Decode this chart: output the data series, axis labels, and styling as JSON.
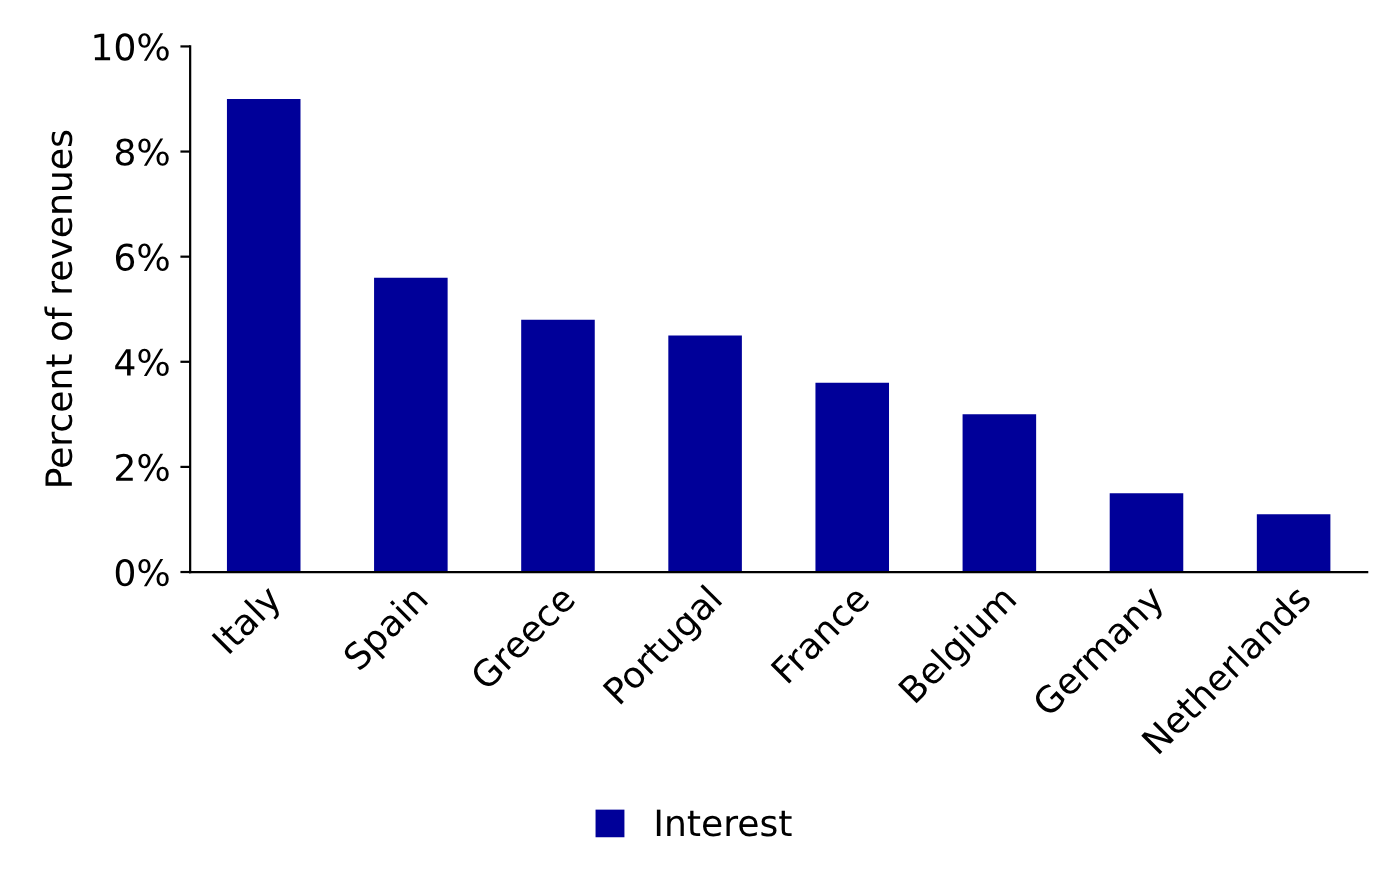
{
  "chart_data": {
    "type": "bar",
    "ylabel": "Percent of revenues",
    "categories": [
      "Italy",
      "Spain",
      "Greece",
      "Portugal",
      "France",
      "Belgium",
      "Germany",
      "Netherlands"
    ],
    "series": [
      {
        "name": "Interest",
        "color": "#000099",
        "values": [
          9.0,
          5.6,
          4.8,
          4.5,
          3.6,
          3.0,
          1.5,
          1.1
        ]
      }
    ],
    "ylim": [
      0,
      10
    ],
    "yticks": [
      {
        "value": 0,
        "label": "0%"
      },
      {
        "value": 2,
        "label": "2%"
      },
      {
        "value": 4,
        "label": "4%"
      },
      {
        "value": 6,
        "label": "6%"
      },
      {
        "value": 8,
        "label": "8%"
      },
      {
        "value": 10,
        "label": "10%"
      }
    ],
    "grid": false,
    "legend": "bottom"
  }
}
